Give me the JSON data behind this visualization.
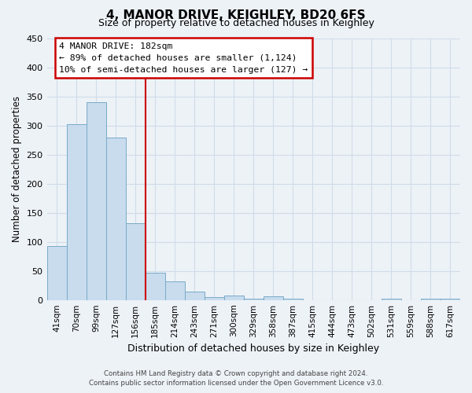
{
  "title": "4, MANOR DRIVE, KEIGHLEY, BD20 6FS",
  "subtitle": "Size of property relative to detached houses in Keighley",
  "xlabel": "Distribution of detached houses by size in Keighley",
  "ylabel": "Number of detached properties",
  "bar_color": "#c8dced",
  "bar_edge_color": "#7aaac8",
  "categories": [
    "41sqm",
    "70sqm",
    "99sqm",
    "127sqm",
    "156sqm",
    "185sqm",
    "214sqm",
    "243sqm",
    "271sqm",
    "300sqm",
    "329sqm",
    "358sqm",
    "387sqm",
    "415sqm",
    "444sqm",
    "473sqm",
    "502sqm",
    "531sqm",
    "559sqm",
    "588sqm",
    "617sqm"
  ],
  "values": [
    93,
    303,
    341,
    280,
    132,
    47,
    32,
    14,
    5,
    8,
    2,
    7,
    2,
    0,
    0,
    0,
    0,
    2,
    0,
    2,
    2
  ],
  "ylim": [
    0,
    450
  ],
  "yticks": [
    0,
    50,
    100,
    150,
    200,
    250,
    300,
    350,
    400,
    450
  ],
  "vline_index": 5,
  "vline_color": "#cc0000",
  "annotation_title": "4 MANOR DRIVE: 182sqm",
  "annotation_line1": "← 89% of detached houses are smaller (1,124)",
  "annotation_line2": "10% of semi-detached houses are larger (127) →",
  "annotation_box_facecolor": "#ffffff",
  "annotation_box_edgecolor": "#cc0000",
  "footnote1": "Contains HM Land Registry data © Crown copyright and database right 2024.",
  "footnote2": "Contains public sector information licensed under the Open Government Licence v3.0.",
  "grid_color": "#d0dce8",
  "background_color": "#edf2f7",
  "title_fontsize": 11,
  "subtitle_fontsize": 9
}
